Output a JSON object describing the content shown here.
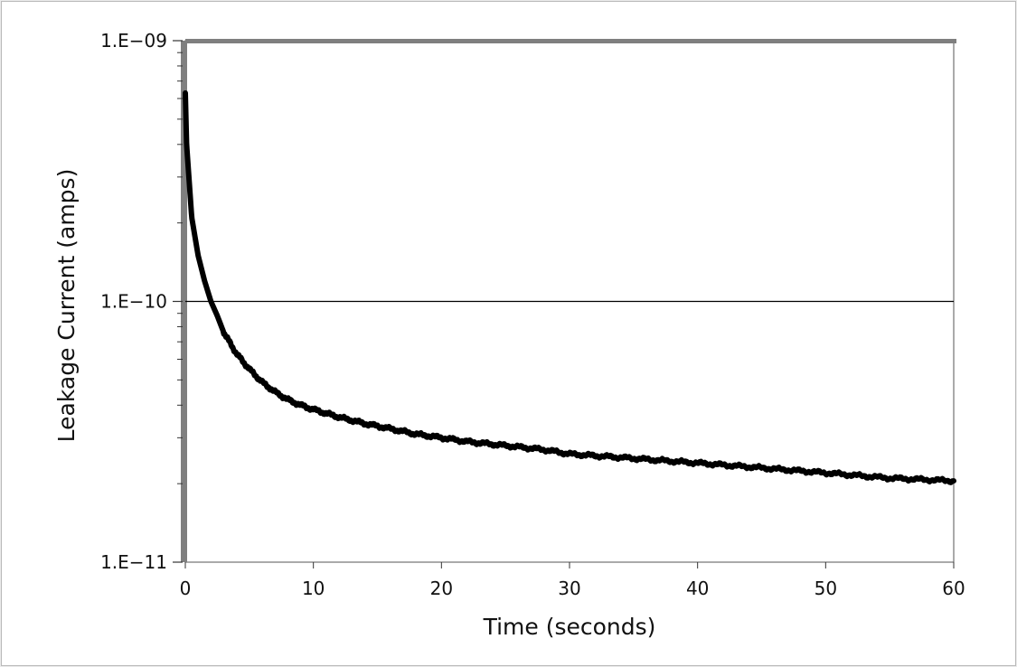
{
  "chart_data": {
    "type": "line",
    "title": "",
    "xlabel": "Time (seconds)",
    "ylabel": "Leakage Current (amps)",
    "xlim": [
      0,
      60
    ],
    "ylim": [
      1e-11,
      1e-09
    ],
    "y_scale": "log",
    "grid": "horizontal major gridline at 1.E−10",
    "x_ticks": [
      {
        "value": 0,
        "label": "0"
      },
      {
        "value": 10,
        "label": "10"
      },
      {
        "value": 20,
        "label": "20"
      },
      {
        "value": 30,
        "label": "30"
      },
      {
        "value": 40,
        "label": "40"
      },
      {
        "value": 50,
        "label": "50"
      },
      {
        "value": 60,
        "label": "60"
      }
    ],
    "y_ticks": [
      {
        "value": 1e-09,
        "label": "1.E−09"
      },
      {
        "value": 1e-10,
        "label": "1.E−10"
      },
      {
        "value": 1e-11,
        "label": "1.E−11"
      }
    ],
    "series": [
      {
        "color": "#000000",
        "x": [
          0,
          0.1,
          0.3,
          0.5,
          1.0,
          1.5,
          2.0,
          2.5,
          3.0,
          4.0,
          5.0,
          6.0,
          7.0,
          8.0,
          9.0,
          10,
          12,
          14,
          16,
          18,
          20,
          22,
          25,
          28,
          30,
          35,
          40,
          45,
          50,
          55,
          60
        ],
        "y": [
          6.3e-10,
          4e-10,
          2.9e-10,
          2.1e-10,
          1.5e-10,
          1.2e-10,
          1e-10,
          8.8e-11,
          7.6e-11,
          6.3e-11,
          5.5e-11,
          4.9e-11,
          4.5e-11,
          4.2e-11,
          4e-11,
          3.85e-11,
          3.6e-11,
          3.4e-11,
          3.25e-11,
          3.1e-11,
          3e-11,
          2.9e-11,
          2.8e-11,
          2.7e-11,
          2.6e-11,
          2.5e-11,
          2.4e-11,
          2.3e-11,
          2.2e-11,
          2.1e-11,
          2.05e-11
        ]
      }
    ]
  }
}
